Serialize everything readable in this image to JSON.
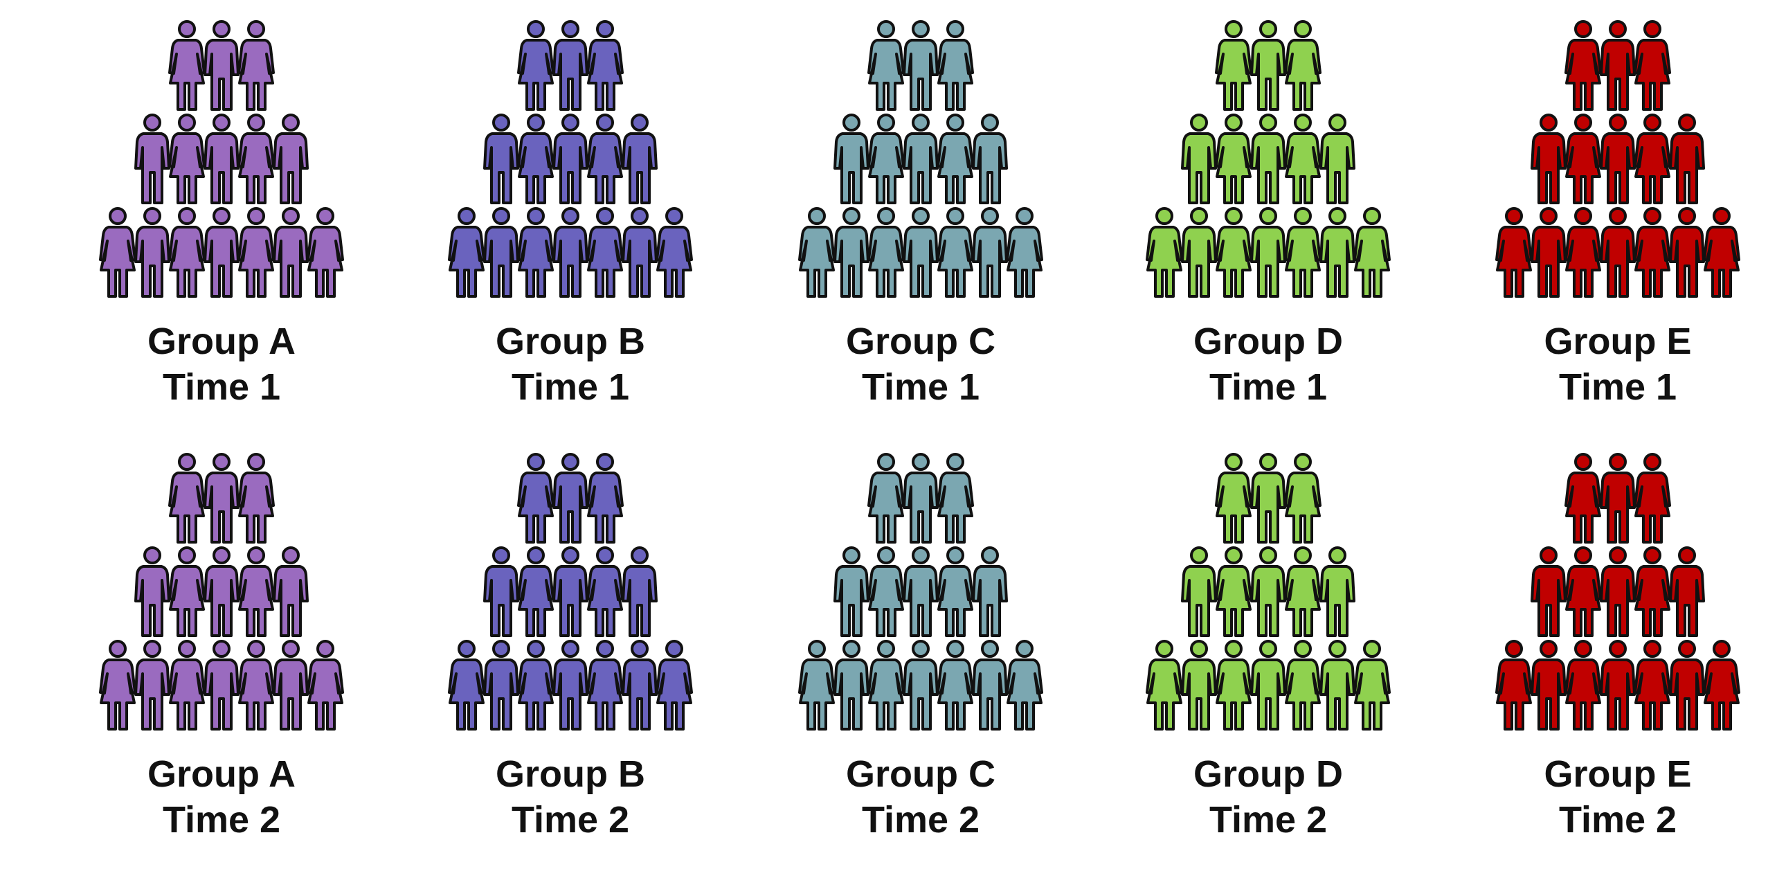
{
  "figure": {
    "panels": [
      {
        "group": "Group A",
        "time": "Time 1",
        "color": "#9a6bbf"
      },
      {
        "group": "Group B",
        "time": "Time 1",
        "color": "#6a63be"
      },
      {
        "group": "Group C",
        "time": "Time 1",
        "color": "#7ba7b1"
      },
      {
        "group": "Group D",
        "time": "Time 1",
        "color": "#8fd14f"
      },
      {
        "group": "Group E",
        "time": "Time 1",
        "color": "#c00000"
      },
      {
        "group": "Group A",
        "time": "Time 2",
        "color": "#9a6bbf"
      },
      {
        "group": "Group B",
        "time": "Time 2",
        "color": "#6a63be"
      },
      {
        "group": "Group C",
        "time": "Time 2",
        "color": "#7ba7b1"
      },
      {
        "group": "Group D",
        "time": "Time 2",
        "color": "#8fd14f"
      },
      {
        "group": "Group E",
        "time": "Time 2",
        "color": "#c00000"
      }
    ],
    "rows_of_people": [
      3,
      5,
      7
    ],
    "outline_color": "#111111",
    "icon": "person-icon"
  }
}
